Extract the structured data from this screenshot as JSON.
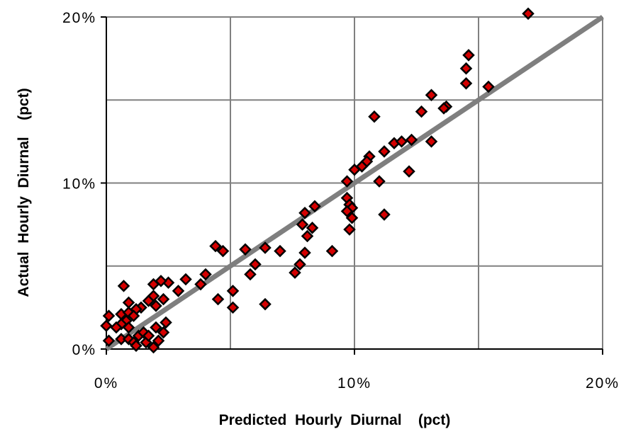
{
  "chart_data": {
    "type": "scatter",
    "xlabel": "Predicted  Hourly  Diurnal    (pct)",
    "ylabel": "Actual  Hourly  Diurnal    (pct)",
    "xlim": [
      0,
      20
    ],
    "ylim": [
      0,
      20
    ],
    "x_ticks": [
      0,
      10,
      20
    ],
    "x_tick_labels": [
      "0%",
      "10%",
      "20%"
    ],
    "y_ticks": [
      0,
      10,
      20
    ],
    "y_tick_labels": [
      "0%",
      "10%",
      "20%"
    ],
    "grid": true,
    "grid_step": 5,
    "legend": "none",
    "colors": {
      "marker_fill": "#d40000",
      "marker_stroke": "#000000",
      "fit_line": "#7f7f7f",
      "grid": "#808080",
      "axes": "#000000"
    },
    "reference_line": {
      "from": [
        0,
        0
      ],
      "to": [
        20,
        20
      ]
    },
    "series": [
      {
        "points": [
          [
            17.0,
            20.2
          ],
          [
            14.6,
            17.7
          ],
          [
            14.5,
            16.9
          ],
          [
            14.5,
            16.0
          ],
          [
            15.4,
            15.8
          ],
          [
            13.1,
            15.3
          ],
          [
            13.7,
            14.6
          ],
          [
            13.6,
            14.5
          ],
          [
            12.7,
            14.3
          ],
          [
            10.8,
            14.0
          ],
          [
            13.1,
            12.5
          ],
          [
            11.6,
            12.4
          ],
          [
            11.9,
            12.5
          ],
          [
            12.3,
            12.6
          ],
          [
            11.2,
            11.9
          ],
          [
            12.2,
            10.7
          ],
          [
            10.6,
            11.6
          ],
          [
            10.5,
            11.3
          ],
          [
            10.3,
            11.0
          ],
          [
            10.0,
            10.8
          ],
          [
            11.0,
            10.1
          ],
          [
            11.2,
            8.1
          ],
          [
            9.7,
            10.1
          ],
          [
            9.7,
            9.1
          ],
          [
            9.8,
            8.7
          ],
          [
            9.9,
            8.5
          ],
          [
            9.7,
            8.3
          ],
          [
            9.9,
            7.9
          ],
          [
            9.8,
            7.2
          ],
          [
            8.0,
            8.2
          ],
          [
            7.9,
            7.5
          ],
          [
            8.4,
            8.6
          ],
          [
            8.3,
            7.3
          ],
          [
            8.1,
            6.8
          ],
          [
            8.0,
            5.8
          ],
          [
            9.1,
            5.9
          ],
          [
            7.0,
            5.9
          ],
          [
            7.6,
            4.6
          ],
          [
            7.8,
            5.1
          ],
          [
            6.4,
            6.1
          ],
          [
            5.6,
            6.0
          ],
          [
            5.8,
            4.5
          ],
          [
            6.0,
            5.1
          ],
          [
            4.4,
            6.2
          ],
          [
            4.7,
            5.9
          ],
          [
            4.5,
            3.0
          ],
          [
            5.1,
            3.5
          ],
          [
            5.1,
            2.5
          ],
          [
            6.4,
            2.7
          ],
          [
            4.0,
            4.5
          ],
          [
            3.8,
            3.9
          ],
          [
            3.2,
            4.2
          ],
          [
            2.9,
            3.5
          ],
          [
            2.5,
            4.0
          ],
          [
            2.2,
            4.1
          ],
          [
            1.9,
            3.9
          ],
          [
            2.3,
            3.0
          ],
          [
            1.9,
            3.2
          ],
          [
            1.7,
            2.9
          ],
          [
            1.4,
            2.5
          ],
          [
            1.2,
            2.4
          ],
          [
            2.0,
            2.6
          ],
          [
            0.7,
            3.8
          ],
          [
            0.9,
            2.8
          ],
          [
            0.6,
            2.1
          ],
          [
            0.9,
            2.2
          ],
          [
            1.1,
            2.0
          ],
          [
            0.8,
            1.7
          ],
          [
            0.6,
            1.5
          ],
          [
            0.4,
            1.3
          ],
          [
            0.1,
            2.0
          ],
          [
            0.0,
            1.4
          ],
          [
            0.1,
            0.5
          ],
          [
            0.6,
            0.6
          ],
          [
            0.9,
            0.6
          ],
          [
            1.1,
            0.4
          ],
          [
            1.3,
            0.8
          ],
          [
            1.5,
            1.0
          ],
          [
            1.6,
            0.4
          ],
          [
            1.9,
            0.1
          ],
          [
            2.1,
            0.5
          ],
          [
            1.7,
            0.8
          ],
          [
            2.4,
            1.6
          ],
          [
            2.3,
            1.0
          ],
          [
            2.0,
            1.3
          ],
          [
            1.2,
            0.2
          ],
          [
            0.9,
            1.3
          ]
        ]
      }
    ]
  }
}
